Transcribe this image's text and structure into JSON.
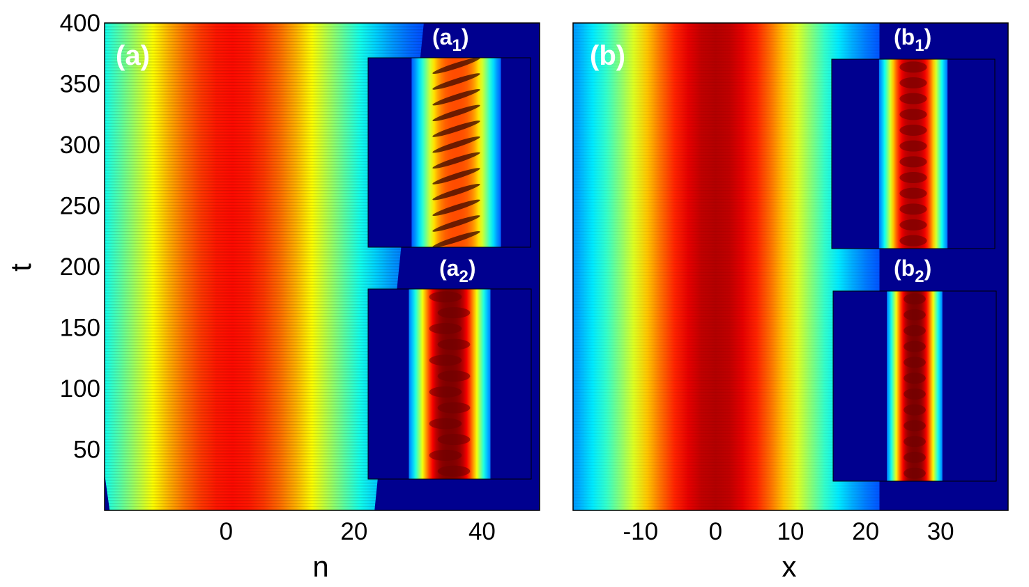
{
  "chart_data": [
    {
      "type": "heatmap",
      "panel_label": "(a)",
      "xlabel": "n",
      "ylabel": "t",
      "xlim": [
        -19,
        49
      ],
      "ylim": [
        0,
        400
      ],
      "xticks": [
        "0",
        "20",
        "40"
      ],
      "yticks": [
        "50",
        "100",
        "150",
        "200",
        "250",
        "300",
        "350",
        "400"
      ],
      "colormap": "jet",
      "background_color": "#00008f",
      "band": {
        "center_at_t0": 2.5,
        "center_at_t400": 1.0,
        "halfwidth_at_t0": 9.0,
        "halfwidth_at_t400": 13.0,
        "peak_at_t0": 0.93,
        "peak_at_t400": 0.8
      },
      "insets": [
        {
          "label": "(a",
          "subscript": "1",
          "closing": ")",
          "pattern": "tilted oscillating stripes",
          "peak": 0.8
        },
        {
          "label": "(a",
          "subscript": "2",
          "closing": ")",
          "pattern": "zigzag breathing core",
          "peak": 1.0
        }
      ]
    },
    {
      "type": "heatmap",
      "panel_label": "(b)",
      "xlabel": "x",
      "ylabel": "",
      "xlim": [
        -19,
        39
      ],
      "ylim": [
        0,
        400
      ],
      "xticks": [
        "-10",
        "0",
        "10",
        "20",
        "30"
      ],
      "yticks": [],
      "colormap": "jet",
      "background_color": "#00008f",
      "band": {
        "center_at_t0": 0.0,
        "center_at_t400": 0.0,
        "halfwidth_at_t0": 9.5,
        "halfwidth_at_t400": 9.5,
        "peak_at_t0": 0.95,
        "peak_at_t400": 0.95
      },
      "insets": [
        {
          "label": "(b",
          "subscript": "1",
          "closing": ")",
          "pattern": "periodic beads",
          "peak": 0.95
        },
        {
          "label": "(b",
          "subscript": "2",
          "closing": ")",
          "pattern": "narrow stationary core",
          "peak": 1.0
        }
      ]
    }
  ]
}
